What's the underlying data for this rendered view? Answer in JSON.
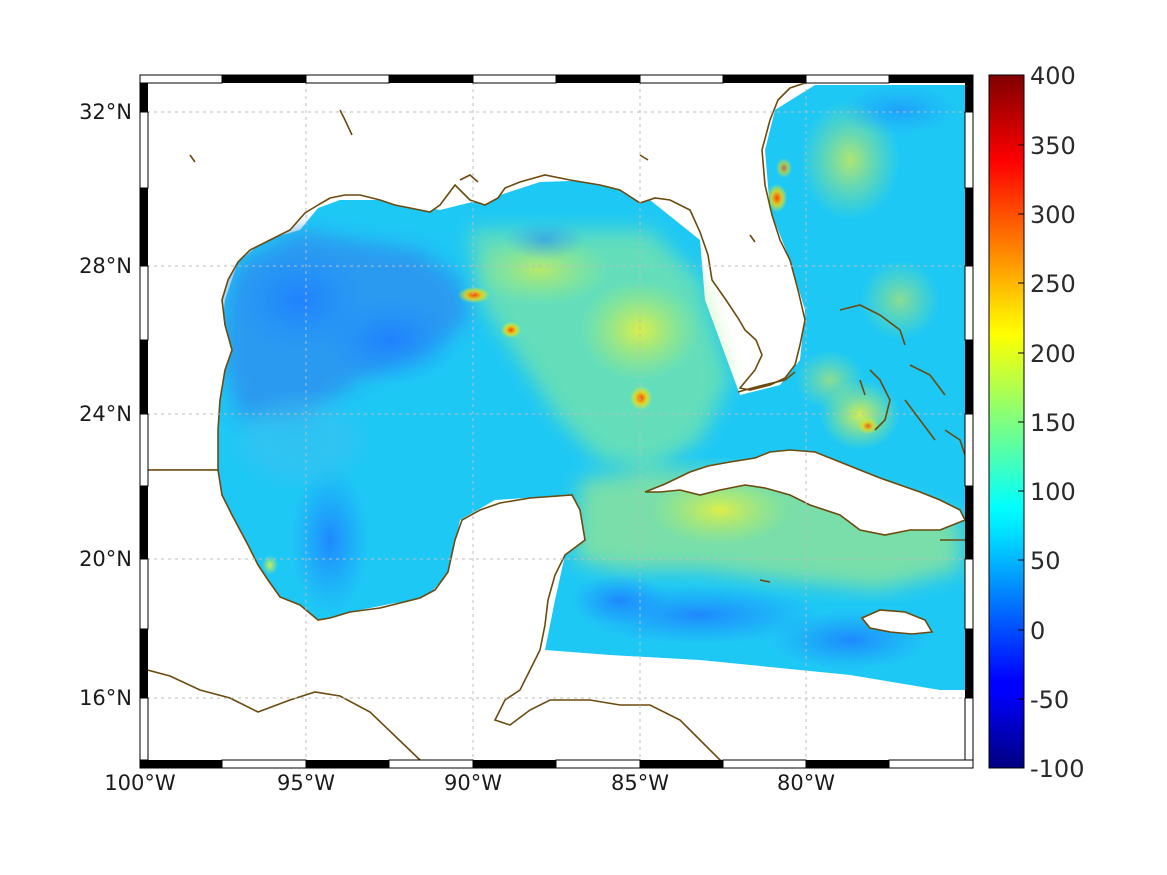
{
  "map": {
    "lat_labels": [
      "32°N",
      "28°N",
      "24°N",
      "20°N",
      "16°N"
    ],
    "lon_labels": [
      "100°W",
      "95°W",
      "90°W",
      "85°W",
      "80°W"
    ],
    "lat_values": [
      32,
      28,
      24,
      20,
      16
    ],
    "lon_values": [
      -100,
      -95,
      -90,
      -85,
      -80
    ],
    "extent": {
      "lon_min": -100,
      "lon_max": -75,
      "lat_min": 14.2,
      "lat_max": 33
    },
    "coastline_color": "#6b4a0e"
  },
  "colorbar": {
    "labels": [
      "400",
      "350",
      "300",
      "250",
      "200",
      "150",
      "100",
      "50",
      "0",
      "-50",
      "-100"
    ],
    "min": -100,
    "max": 400,
    "colormap": "jet"
  }
}
